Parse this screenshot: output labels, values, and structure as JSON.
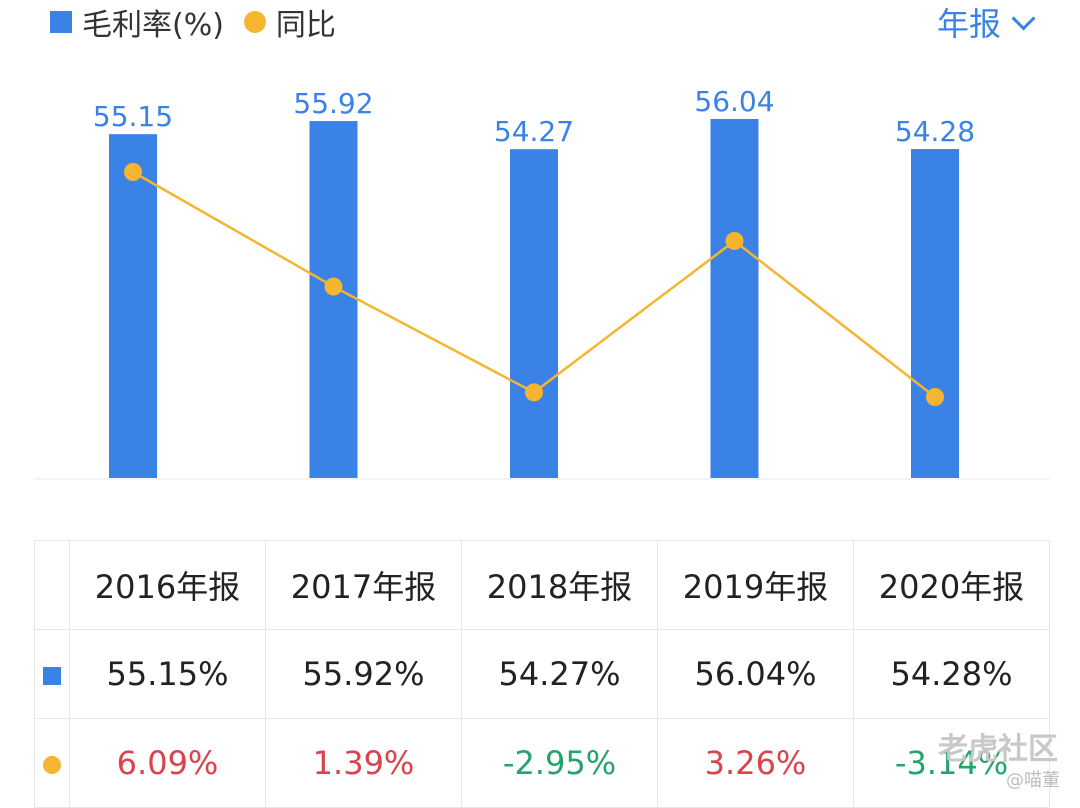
{
  "legend": {
    "bar_label": "毛利率(%)",
    "line_label": "同比"
  },
  "period_selector": {
    "label": "年报"
  },
  "chart_data": {
    "type": "bar",
    "categories": [
      "2016年报",
      "2017年报",
      "2018年报",
      "2019年报",
      "2020年报"
    ],
    "series": [
      {
        "name": "毛利率(%)",
        "type": "bar",
        "values": [
          55.15,
          55.92,
          54.27,
          56.04,
          54.28
        ],
        "color": "#3b82e6"
      },
      {
        "name": "同比",
        "type": "line",
        "values": [
          6.09,
          1.39,
          -2.95,
          3.26,
          -3.14
        ],
        "color": "#f5b530"
      }
    ],
    "bar_labels": [
      "55.15",
      "55.92",
      "54.27",
      "56.04",
      "54.28"
    ]
  },
  "table": {
    "headers": [
      "2016年报",
      "2017年报",
      "2018年报",
      "2019年报",
      "2020年报"
    ],
    "row_margin": [
      "55.15%",
      "55.92%",
      "54.27%",
      "56.04%",
      "54.28%"
    ],
    "row_yoy": [
      "6.09%",
      "1.39%",
      "-2.95%",
      "3.26%",
      "-3.14%"
    ]
  },
  "colors": {
    "accent": "#3b82e6",
    "line": "#f5b530",
    "up": "#d9434b",
    "down": "#21a56b"
  },
  "watermark": {
    "brand": "老虎社区",
    "user": "@喵董"
  }
}
